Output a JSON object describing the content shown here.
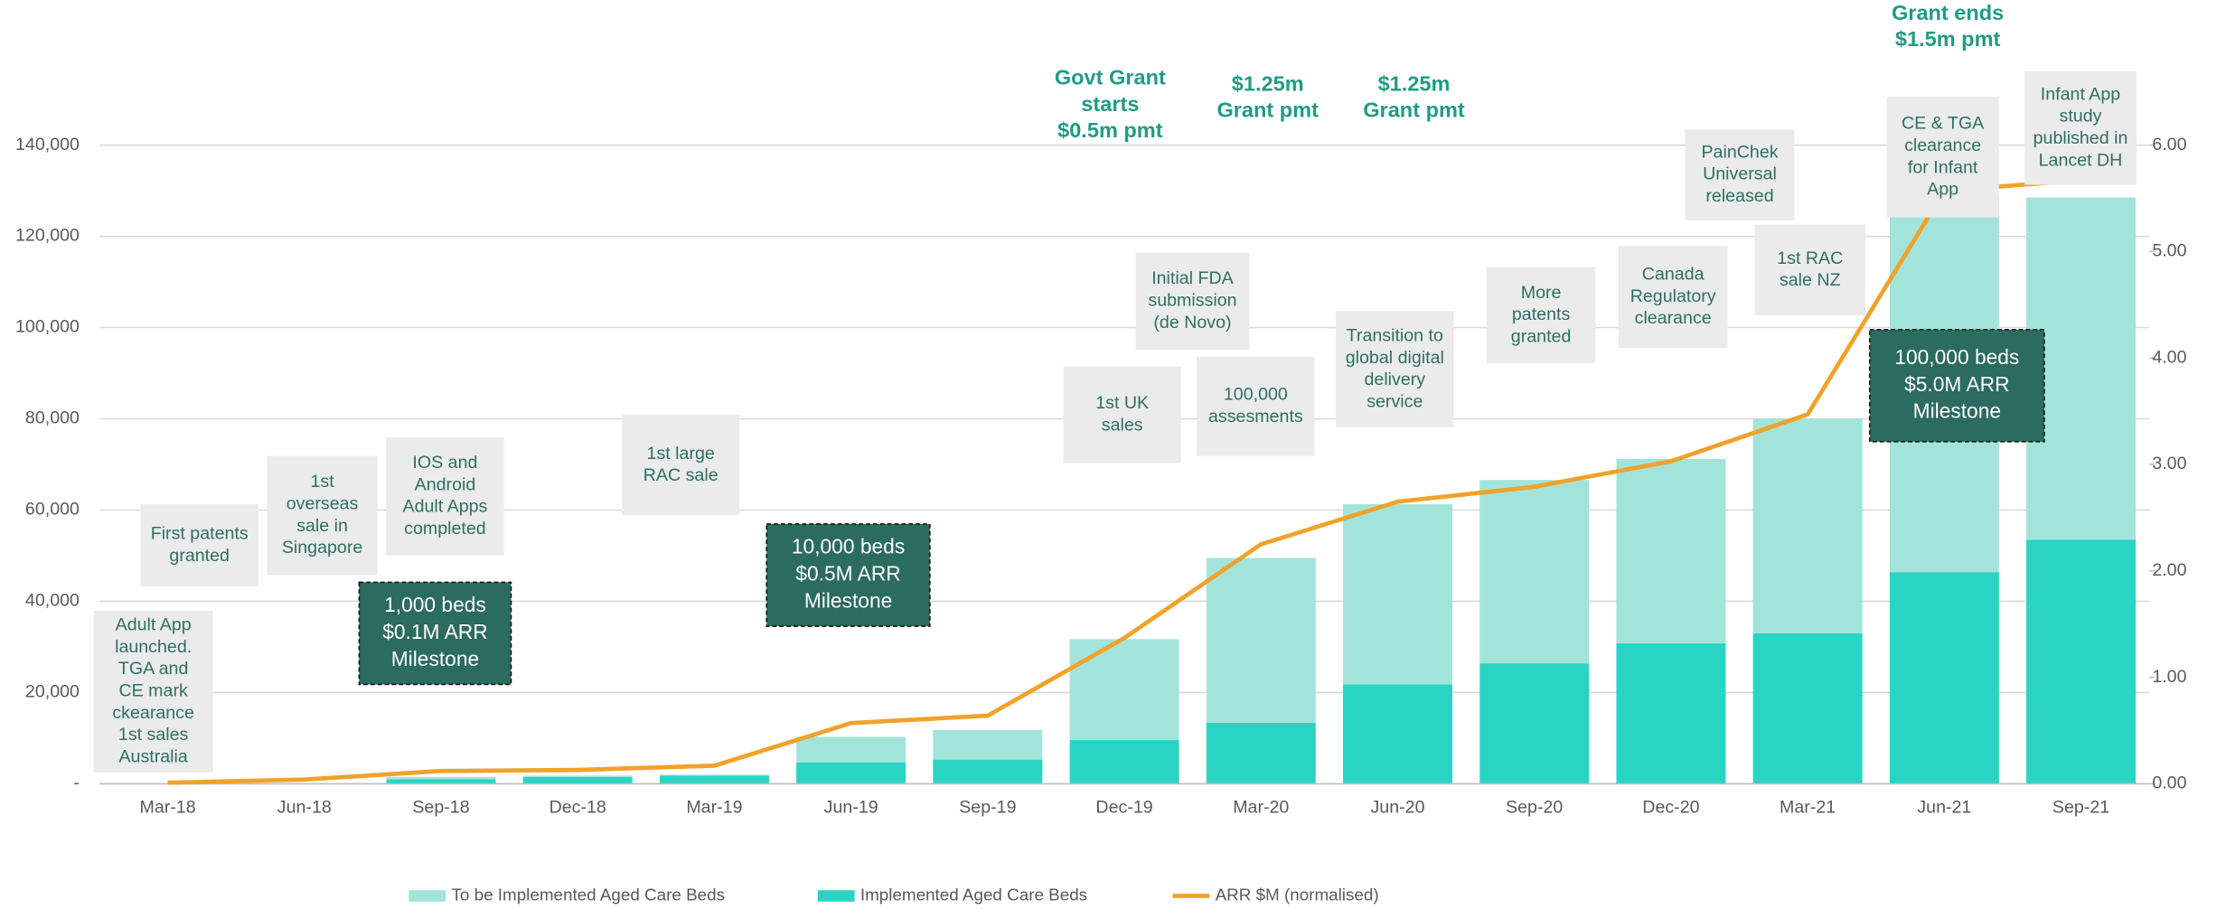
{
  "chart_data": {
    "type": "bar",
    "categories": [
      "Mar-18",
      "Jun-18",
      "Sep-18",
      "Dec-18",
      "Mar-19",
      "Jun-19",
      "Sep-19",
      "Dec-19",
      "Mar-20",
      "Jun-20",
      "Sep-20",
      "Dec-20",
      "Mar-21",
      "Jun-21",
      "Sep-21"
    ],
    "series": [
      {
        "name": "To be Implemented Aged Care Beds",
        "color": "#a3e4da",
        "values": [
          0,
          0,
          500,
          300,
          200,
          5600,
          6500,
          22100,
          36100,
          39500,
          40200,
          40400,
          47000,
          82700,
          75000
        ]
      },
      {
        "name": "Implemented Aged Care Beds",
        "color": "#2ad4c4",
        "values": [
          0,
          0,
          1000,
          1500,
          1800,
          4700,
          5300,
          9600,
          13400,
          21800,
          26400,
          30800,
          33000,
          46400,
          53500
        ]
      },
      {
        "name": "ARR $M (normalised)",
        "type": "line",
        "axis": "y2",
        "color": "#f0a22a",
        "values": [
          0.01,
          0.04,
          0.12,
          0.13,
          0.17,
          0.57,
          0.64,
          1.37,
          2.25,
          2.65,
          2.79,
          3.03,
          3.47,
          5.57,
          5.67
        ]
      }
    ],
    "ylim": [
      0,
      140000
    ],
    "yticks": [
      {
        "value": 0,
        "label": "-"
      },
      {
        "value": 20000,
        "label": "20,000"
      },
      {
        "value": 40000,
        "label": "40,000"
      },
      {
        "value": 60000,
        "label": "60,000"
      },
      {
        "value": 80000,
        "label": "80,000"
      },
      {
        "value": 100000,
        "label": "100,000"
      },
      {
        "value": 120000,
        "label": "120,000"
      },
      {
        "value": 140000,
        "label": "140,000"
      }
    ],
    "y2lim": [
      0,
      6
    ],
    "y2ticks": [
      {
        "value": 0,
        "label": "0.00"
      },
      {
        "value": 1,
        "label": "1.00"
      },
      {
        "value": 2,
        "label": "2.00"
      },
      {
        "value": 3,
        "label": "3.00"
      },
      {
        "value": 4,
        "label": "4.00"
      },
      {
        "value": 5,
        "label": "5.00"
      },
      {
        "value": 6,
        "label": "6.00"
      }
    ],
    "grid": true,
    "legend": "bottom",
    "annotations": {
      "notes": [
        {
          "lines": [
            "Adult App",
            "launched.",
            "TGA and",
            "CE mark",
            "ckearance",
            "1st sales",
            "Australia"
          ]
        },
        {
          "lines": [
            "First patents",
            "granted"
          ]
        },
        {
          "lines": [
            "1st",
            "overseas",
            "sale in",
            "Singapore"
          ]
        },
        {
          "lines": [
            "IOS and",
            "Android",
            "Adult Apps",
            "completed"
          ]
        },
        {
          "lines": [
            "1st large",
            "RAC sale"
          ]
        },
        {
          "lines": [
            "1st UK",
            "sales"
          ]
        },
        {
          "lines": [
            "Initial FDA",
            "submission",
            "(de Novo)"
          ]
        },
        {
          "lines": [
            "100,000",
            "assesments"
          ]
        },
        {
          "lines": [
            "Transition to",
            "global digital",
            "delivery",
            "service"
          ]
        },
        {
          "lines": [
            "More",
            "patents",
            "granted"
          ]
        },
        {
          "lines": [
            "Canada",
            "Regulatory",
            "clearance"
          ]
        },
        {
          "lines": [
            "1st RAC",
            "sale NZ"
          ]
        },
        {
          "lines": [
            "PainChek",
            "Universal",
            "released"
          ]
        },
        {
          "lines": [
            "CE & TGA",
            "clearance",
            "for Infant",
            "App"
          ]
        },
        {
          "lines": [
            "Infant App",
            "study",
            "published in",
            "Lancet DH"
          ]
        }
      ],
      "milestones": [
        {
          "lines": [
            "1,000 beds",
            "$0.1M ARR",
            "Milestone"
          ]
        },
        {
          "lines": [
            "10,000 beds",
            "$0.5M ARR",
            "Milestone"
          ]
        },
        {
          "lines": [
            "100,000 beds",
            "$5.0M ARR",
            "Milestone"
          ]
        }
      ],
      "grants": [
        {
          "lines": [
            "Govt Grant",
            "starts",
            "$0.5m pmt"
          ]
        },
        {
          "lines": [
            "$1.25m",
            "Grant pmt"
          ]
        },
        {
          "lines": [
            "$1.25m",
            "Grant pmt"
          ]
        },
        {
          "lines": [
            "Grant ends",
            "$1.5m pmt"
          ]
        }
      ]
    }
  }
}
